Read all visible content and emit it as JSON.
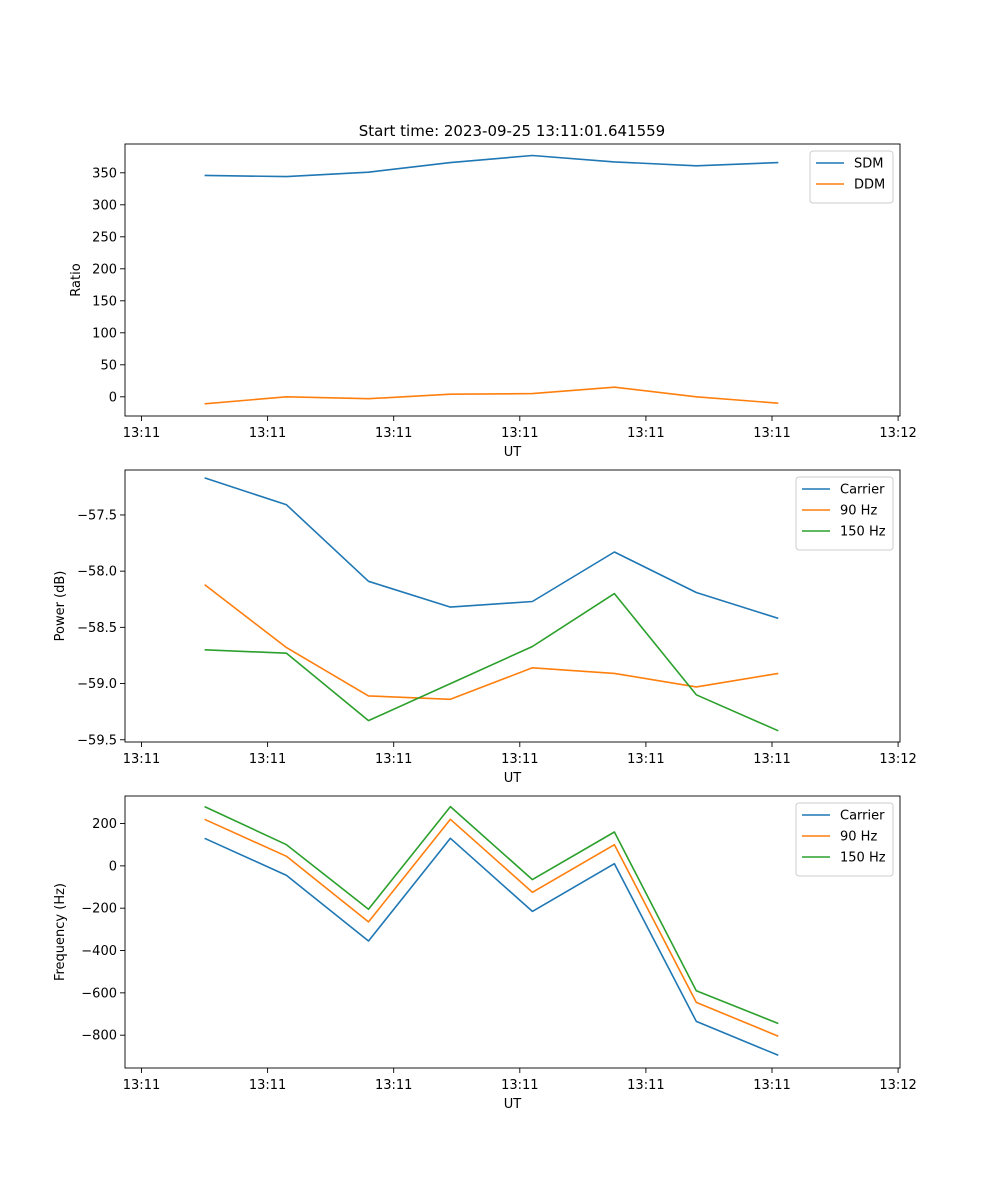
{
  "figure_title": "Start time: 2023-09-25 13:11:01.641559",
  "chart_data": [
    {
      "type": "line",
      "title": "Start time: 2023-09-25 13:11:01.641559",
      "xlabel": "UT",
      "ylabel": "Ratio",
      "x_unit": "seconds",
      "xlim": [
        0,
        6
      ],
      "x_ticks": [
        0,
        1,
        2,
        3,
        4,
        5,
        6
      ],
      "x_tick_labels": [
        "13:11",
        "13:11",
        "13:11",
        "13:11",
        "13:11",
        "13:11",
        "13:12"
      ],
      "ylim": [
        -30,
        395
      ],
      "y_ticks": [
        0,
        50,
        100,
        150,
        200,
        250,
        300,
        350
      ],
      "y_tick_labels": [
        "0",
        "50",
        "100",
        "150",
        "200",
        "250",
        "300",
        "350"
      ],
      "legend_position": "top-right",
      "x": [
        0.5,
        1.15,
        1.8,
        2.45,
        3.1,
        3.75,
        4.4,
        5.05
      ],
      "series": [
        {
          "name": "SDM",
          "color": "#1f77b4",
          "values": [
            346,
            344,
            351,
            366,
            377,
            367,
            361,
            366
          ]
        },
        {
          "name": "DDM",
          "color": "#ff7f0e",
          "values": [
            -11,
            0,
            -3,
            4,
            5,
            15,
            0,
            -10
          ]
        }
      ]
    },
    {
      "type": "line",
      "title": "",
      "xlabel": "UT",
      "ylabel": "Power (dB)",
      "x_unit": "seconds",
      "xlim": [
        0,
        6
      ],
      "x_ticks": [
        0,
        1,
        2,
        3,
        4,
        5,
        6
      ],
      "x_tick_labels": [
        "13:11",
        "13:11",
        "13:11",
        "13:11",
        "13:11",
        "13:11",
        "13:12"
      ],
      "ylim": [
        -59.52,
        -57.1
      ],
      "y_ticks": [
        -59.5,
        -59.0,
        -58.5,
        -58.0,
        -57.5
      ],
      "y_tick_labels": [
        "−59.5",
        "−59.0",
        "−58.5",
        "−58.0",
        "−57.5"
      ],
      "legend_position": "top-right",
      "x": [
        0.5,
        1.15,
        1.8,
        2.45,
        3.1,
        3.75,
        4.4,
        5.05
      ],
      "series": [
        {
          "name": "Carrier",
          "color": "#1f77b4",
          "values": [
            -57.17,
            -57.41,
            -58.09,
            -58.32,
            -58.27,
            -57.83,
            -58.19,
            -58.42
          ]
        },
        {
          "name": "90 Hz",
          "color": "#ff7f0e",
          "values": [
            -58.12,
            -58.68,
            -59.11,
            -59.14,
            -58.86,
            -58.91,
            -59.03,
            -58.91
          ]
        },
        {
          "name": "150 Hz",
          "color": "#2ca02c",
          "values": [
            -58.7,
            -58.73,
            -59.33,
            -59.0,
            -58.67,
            -58.2,
            -59.1,
            -59.42
          ]
        }
      ]
    },
    {
      "type": "line",
      "title": "",
      "xlabel": "UT",
      "ylabel": "Frequency (Hz)",
      "x_unit": "seconds",
      "xlim": [
        0,
        6
      ],
      "x_ticks": [
        0,
        1,
        2,
        3,
        4,
        5,
        6
      ],
      "x_tick_labels": [
        "13:11",
        "13:11",
        "13:11",
        "13:11",
        "13:11",
        "13:11",
        "13:12"
      ],
      "ylim": [
        -955,
        330
      ],
      "y_ticks": [
        -800,
        -600,
        -400,
        -200,
        0,
        200
      ],
      "y_tick_labels": [
        "−800",
        "−600",
        "−400",
        "−200",
        "0",
        "200"
      ],
      "legend_position": "top-right",
      "x": [
        0.5,
        1.15,
        1.8,
        2.45,
        3.1,
        3.75,
        4.4,
        5.05
      ],
      "series": [
        {
          "name": "Carrier",
          "color": "#1f77b4",
          "values": [
            130,
            -45,
            -355,
            130,
            -215,
            10,
            -735,
            -895
          ]
        },
        {
          "name": "90 Hz",
          "color": "#ff7f0e",
          "values": [
            220,
            45,
            -265,
            220,
            -125,
            100,
            -645,
            -805
          ]
        },
        {
          "name": "150 Hz",
          "color": "#2ca02c",
          "values": [
            280,
            100,
            -205,
            280,
            -65,
            160,
            -590,
            -745
          ]
        }
      ]
    }
  ]
}
